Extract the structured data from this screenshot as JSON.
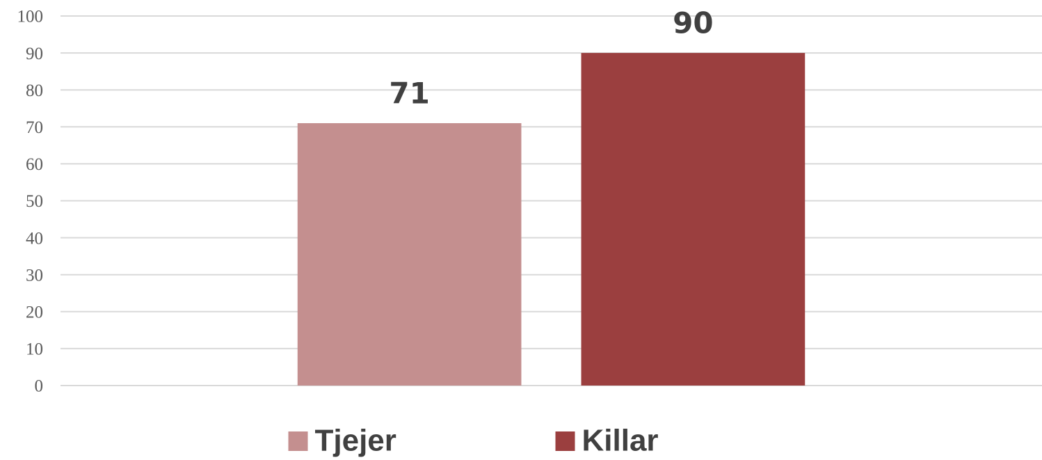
{
  "chart_data": {
    "type": "bar",
    "categories": [
      null
    ],
    "series": [
      {
        "name": "Tjejer",
        "color": "#c48f8f",
        "values": [
          71
        ]
      },
      {
        "name": "Killar",
        "color": "#9b3f3f",
        "values": [
          90
        ]
      }
    ],
    "ylim": [
      0,
      100
    ],
    "yticks": [
      0,
      10,
      20,
      30,
      40,
      50,
      60,
      70,
      80,
      90,
      100
    ],
    "grid": true,
    "legend": "bottom"
  }
}
